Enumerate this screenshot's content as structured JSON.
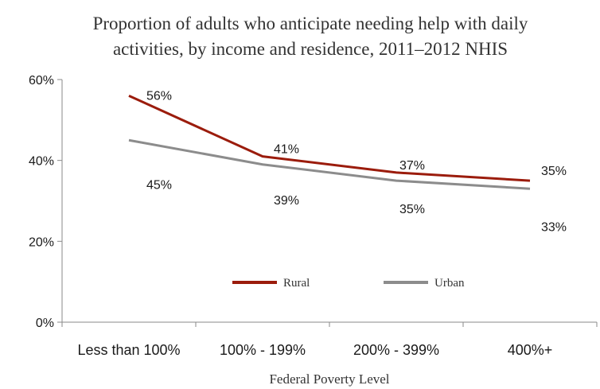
{
  "chart_data": {
    "type": "line",
    "title_lines": [
      "Proportion of adults who anticipate needing help with daily",
      "activities, by income and residence, 2011–2012 NHIS"
    ],
    "xlabel": "Federal Poverty Level",
    "ylabel": "",
    "categories": [
      "Less than 100%",
      "100% - 199%",
      "200% - 399%",
      "400%+"
    ],
    "ylim": [
      0,
      60
    ],
    "yticks": [
      "0%",
      "20%",
      "40%",
      "60%"
    ],
    "ytick_values": [
      0,
      20,
      40,
      60
    ],
    "series": [
      {
        "name": "Rural",
        "values": [
          56,
          41,
          37,
          35
        ],
        "labels": [
          "56%",
          "41%",
          "37%",
          "35%"
        ],
        "color": "#9b1c0c"
      },
      {
        "name": "Urban",
        "values": [
          45,
          39,
          35,
          33
        ],
        "labels": [
          "45%",
          "39%",
          "35%",
          "33%"
        ],
        "color": "#8c8c8c"
      }
    ],
    "legend_position": "inside-bottom-center",
    "grid": false
  }
}
